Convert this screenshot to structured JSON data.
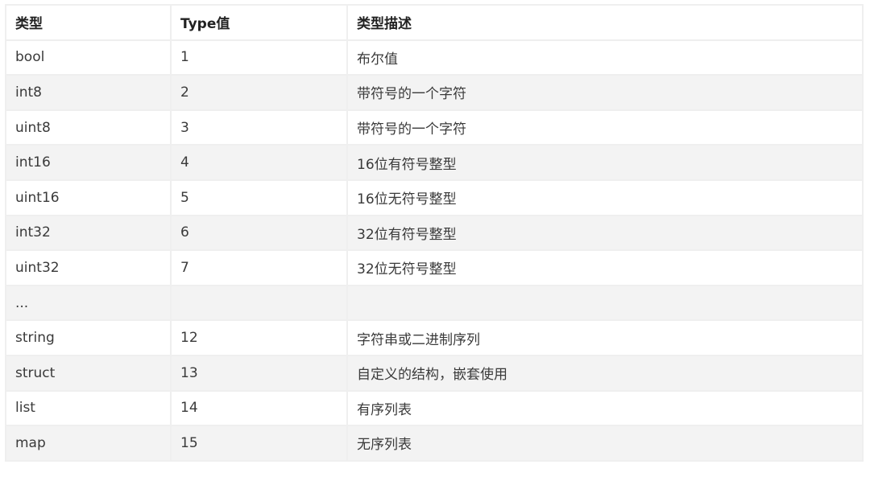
{
  "table": {
    "headers": [
      "类型",
      "Type值",
      "类型描述"
    ],
    "rows": [
      [
        "bool",
        "1",
        "布尔值"
      ],
      [
        "int8",
        "2",
        "带符号的一个字符"
      ],
      [
        "uint8",
        "3",
        "带符号的一个字符"
      ],
      [
        "int16",
        "4",
        "16位有符号整型"
      ],
      [
        "uint16",
        "5",
        "16位无符号整型"
      ],
      [
        "int32",
        "6",
        "32位有符号整型"
      ],
      [
        "uint32",
        "7",
        "32位无符号整型"
      ],
      [
        "...",
        "",
        ""
      ],
      [
        "string",
        "12",
        "字符串或二进制序列"
      ],
      [
        "struct",
        "13",
        "自定义的结构，嵌套使用"
      ],
      [
        "list",
        "14",
        "有序列表"
      ],
      [
        "map",
        "15",
        "无序列表"
      ]
    ]
  },
  "colors": {
    "border": "#efefef",
    "stripe": "#f3f3f3",
    "text": "#3a3a3a"
  }
}
